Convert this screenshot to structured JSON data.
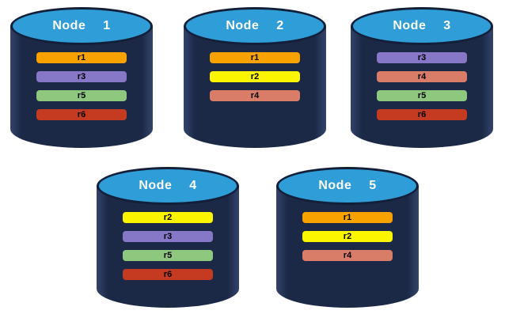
{
  "colors": {
    "canvas-bg": "#ffffff",
    "cylinder-body": "#1b2947",
    "cylinder-edge-highlight": "#33436b",
    "ellipse-fill": "#2f9dd8",
    "ellipse-border": "#131f38",
    "title-text": "#ffffff",
    "bar-label-text": "#000000"
  },
  "bar_colors": {
    "r1": "#f8a200",
    "r2": "#fcf500",
    "r3": "#8677c7",
    "r4": "#d97d68",
    "r5": "#8ec87e",
    "r6": "#c43b22"
  },
  "nodes": [
    {
      "label": "Node  1",
      "replicas": [
        "r1",
        "r3",
        "r5",
        "r6"
      ]
    },
    {
      "label": "Node  2",
      "replicas": [
        "r1",
        "r2",
        "r4"
      ]
    },
    {
      "label": "Node  3",
      "replicas": [
        "r3",
        "r4",
        "r5",
        "r6"
      ]
    },
    {
      "label": "Node  4",
      "replicas": [
        "r2",
        "r3",
        "r5",
        "r6"
      ]
    },
    {
      "label": "Node  5",
      "replicas": [
        "r1",
        "r2",
        "r4"
      ]
    }
  ]
}
